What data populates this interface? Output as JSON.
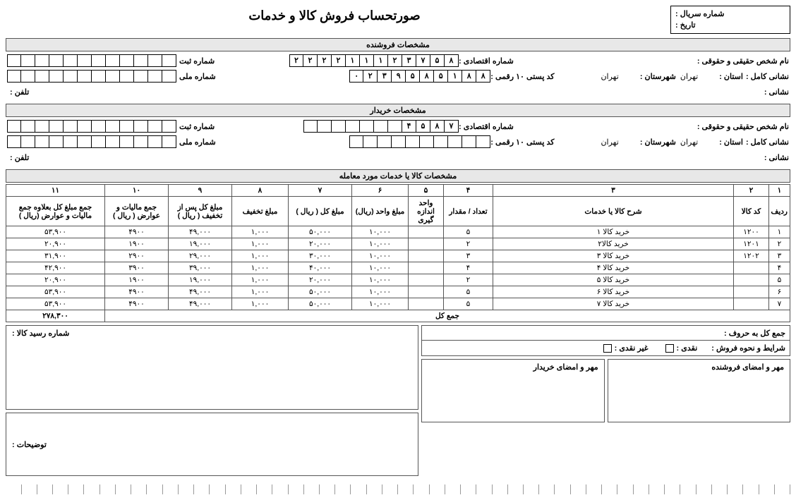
{
  "header": {
    "serial_label": "شماره سریال :",
    "date_label": "تاریخ :",
    "title": "صورتحساب فروش کالا و خدمات"
  },
  "seller_section_title": "مشخصات فروشنده",
  "buyer_section_title": "مشخصات خریدار",
  "items_section_title": "مشخصات کالا یا خدمات مورد معامله",
  "labels": {
    "person": "نام شخص حقیقی و حقوقی :",
    "economic": "شماره اقتصادی :",
    "reg": "شماره ثبت",
    "address_full": "نشانی کامل :",
    "address": "نشانی :",
    "province": "استان :",
    "city": "شهرستان :",
    "postal": "کد پستی ۱۰ رقمی :",
    "national": "شماره ملی",
    "phone": "تلفن :"
  },
  "seller": {
    "province": "تهران",
    "city": "تهران",
    "economic_cells": [
      "۲",
      "۲",
      "۲",
      "۲",
      "۱",
      "۱",
      "۱",
      "۲",
      "۳",
      "۷",
      "۵",
      "۸"
    ],
    "postal_cells": [
      "۰",
      "۲",
      "۳",
      "۹",
      "۵",
      "۸",
      "۵",
      "۱",
      "۸",
      "۸"
    ],
    "reg_cells": [
      "",
      "",
      "",
      "",
      "",
      "",
      "",
      "",
      "",
      "",
      "",
      ""
    ],
    "nat_cells": [
      "",
      "",
      "",
      "",
      "",
      "",
      "",
      "",
      "",
      "",
      "",
      ""
    ]
  },
  "buyer": {
    "province": "تهران",
    "city": "تهران",
    "economic_cells": [
      "",
      "",
      "",
      "",
      "",
      "",
      "",
      "۴",
      "۵",
      "۸",
      "۷"
    ],
    "postal_cells": [
      "",
      "",
      "",
      "",
      "",
      "",
      "",
      "",
      "",
      ""
    ],
    "reg_cells": [
      "",
      "",
      "",
      "",
      "",
      "",
      "",
      "",
      "",
      "",
      "",
      ""
    ],
    "nat_cells": [
      "",
      "",
      "",
      "",
      "",
      "",
      "",
      "",
      "",
      "",
      "",
      ""
    ]
  },
  "columns": {
    "nums": [
      "۱",
      "۲",
      "۳",
      "۴",
      "۵",
      "۶",
      "۷",
      "۸",
      "۹",
      "۱۰",
      "۱۱"
    ],
    "h1": "ردیف",
    "h2": "کد کالا",
    "h3": "شرح کالا یا خدمات",
    "h4": "تعداد / مقدار",
    "h5": "واحد اندازه گیری",
    "h6": "مبلغ واحد (ریال)",
    "h7": "مبلغ کل ( ریال )",
    "h8": "مبلغ تخفیف",
    "h9": "مبلغ کل پس از تخفیف ( ریال )",
    "h10": "جمع مالیات و عوارض ( ریال )",
    "h11": "جمع مبلغ کل بعلاوه جمع مالیات و عوارض (ریال )"
  },
  "rows": [
    {
      "r": "۱",
      "code": "۱۲۰۰",
      "desc": "خرید کالا ۱",
      "qty": "۵",
      "unit": "",
      "price": "۱۰,۰۰۰",
      "total": "۵۰,۰۰۰",
      "disc": "۱,۰۰۰",
      "after": "۴۹,۰۰۰",
      "tax": "۴۹۰۰",
      "grand": "۵۳,۹۰۰"
    },
    {
      "r": "۲",
      "code": "۱۲۰۱",
      "desc": "خرید کالا۲",
      "qty": "۲",
      "unit": "",
      "price": "۱۰,۰۰۰",
      "total": "۲۰,۰۰۰",
      "disc": "۱,۰۰۰",
      "after": "۱۹,۰۰۰",
      "tax": "۱۹۰۰",
      "grand": "۲۰,۹۰۰"
    },
    {
      "r": "۳",
      "code": "۱۲۰۲",
      "desc": "خرید کالا ۳",
      "qty": "۳",
      "unit": "",
      "price": "۱۰,۰۰۰",
      "total": "۳۰,۰۰۰",
      "disc": "۱,۰۰۰",
      "after": "۲۹,۰۰۰",
      "tax": "۲۹۰۰",
      "grand": "۳۱,۹۰۰"
    },
    {
      "r": "۴",
      "code": "",
      "desc": "خرید کالا ۴",
      "qty": "۴",
      "unit": "",
      "price": "۱۰,۰۰۰",
      "total": "۴۰,۰۰۰",
      "disc": "۱,۰۰۰",
      "after": "۳۹,۰۰۰",
      "tax": "۳۹۰۰",
      "grand": "۴۲,۹۰۰"
    },
    {
      "r": "۵",
      "code": "",
      "desc": "خرید کالا ۵",
      "qty": "۲",
      "unit": "",
      "price": "۱۰,۰۰۰",
      "total": "۲۰,۰۰۰",
      "disc": "۱,۰۰۰",
      "after": "۱۹,۰۰۰",
      "tax": "۱۹۰۰",
      "grand": "۲۰,۹۰۰"
    },
    {
      "r": "۶",
      "code": "",
      "desc": "خرید کالا ۶",
      "qty": "۵",
      "unit": "",
      "price": "۱۰,۰۰۰",
      "total": "۵۰,۰۰۰",
      "disc": "۱,۰۰۰",
      "after": "۴۹,۰۰۰",
      "tax": "۴۹۰۰",
      "grand": "۵۳,۹۰۰"
    },
    {
      "r": "۷",
      "code": "",
      "desc": "خرید کالا ۷",
      "qty": "۵",
      "unit": "",
      "price": "۱۰,۰۰۰",
      "total": "۵۰,۰۰۰",
      "disc": "۱,۰۰۰",
      "after": "۴۹,۰۰۰",
      "tax": "۴۹۰۰",
      "grand": "۵۳,۹۰۰"
    }
  ],
  "totals": {
    "label": "جمع کل",
    "grand": "۲۷۸,۳۰۰"
  },
  "footer": {
    "words_label": "جمع کل به حروف :",
    "pay_label": "شرایط و نحوه فروش :",
    "cash": "نقدی :",
    "noncash": "غیر نقدی :",
    "receipt_label": "شماره رسید کالا :",
    "sig_seller": "مهر و امضای فروشنده",
    "sig_buyer": "مهر و امضای خریدار",
    "notes": "توضیحات :"
  },
  "colors": {
    "header_bg": "#e8e8e8",
    "border": "#555555"
  }
}
